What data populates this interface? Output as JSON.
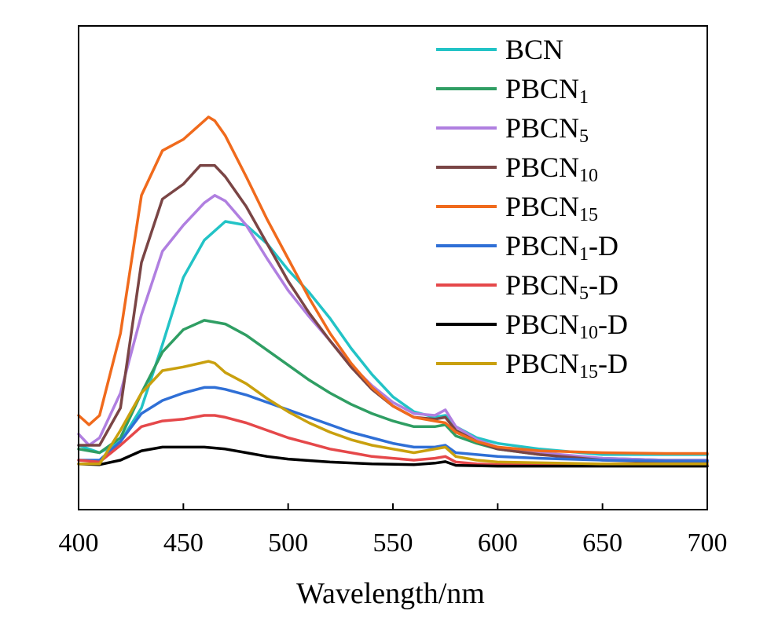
{
  "chart_data": {
    "type": "line",
    "title": "",
    "xlabel": "Wavelength/nm",
    "ylabel": "",
    "xlim": [
      400,
      700
    ],
    "ylim": [
      0,
      1
    ],
    "xticks": [
      "400",
      "450",
      "500",
      "550",
      "600",
      "650",
      "700"
    ],
    "legend_position": "top-right",
    "series": [
      {
        "name": "BCN",
        "label_main": "BCN",
        "label_sub": "",
        "label_suffix": "",
        "color": "#22c3c6",
        "points": [
          [
            400,
            0.08
          ],
          [
            410,
            0.06
          ],
          [
            420,
            0.09
          ],
          [
            430,
            0.18
          ],
          [
            440,
            0.35
          ],
          [
            450,
            0.53
          ],
          [
            460,
            0.63
          ],
          [
            470,
            0.68
          ],
          [
            480,
            0.67
          ],
          [
            490,
            0.62
          ],
          [
            500,
            0.55
          ],
          [
            510,
            0.49
          ],
          [
            520,
            0.42
          ],
          [
            530,
            0.34
          ],
          [
            540,
            0.27
          ],
          [
            550,
            0.21
          ],
          [
            560,
            0.17
          ],
          [
            570,
            0.155
          ],
          [
            575,
            0.16
          ],
          [
            580,
            0.13
          ],
          [
            590,
            0.1
          ],
          [
            600,
            0.085
          ],
          [
            620,
            0.07
          ],
          [
            650,
            0.055
          ],
          [
            680,
            0.055
          ],
          [
            700,
            0.055
          ]
        ]
      },
      {
        "name": "PBCN1",
        "label_main": "PBCN",
        "label_sub": "1",
        "label_suffix": "",
        "color": "#2f9e63",
        "points": [
          [
            400,
            0.07
          ],
          [
            410,
            0.06
          ],
          [
            420,
            0.1
          ],
          [
            430,
            0.22
          ],
          [
            440,
            0.33
          ],
          [
            450,
            0.39
          ],
          [
            460,
            0.415
          ],
          [
            470,
            0.405
          ],
          [
            480,
            0.375
          ],
          [
            490,
            0.335
          ],
          [
            500,
            0.295
          ],
          [
            510,
            0.255
          ],
          [
            520,
            0.22
          ],
          [
            530,
            0.19
          ],
          [
            540,
            0.165
          ],
          [
            550,
            0.145
          ],
          [
            560,
            0.13
          ],
          [
            570,
            0.13
          ],
          [
            575,
            0.135
          ],
          [
            580,
            0.105
          ],
          [
            590,
            0.085
          ],
          [
            600,
            0.07
          ],
          [
            620,
            0.055
          ],
          [
            650,
            0.045
          ],
          [
            680,
            0.04
          ],
          [
            700,
            0.04
          ]
        ]
      },
      {
        "name": "PBCN5",
        "label_main": "PBCN",
        "label_sub": "5",
        "label_suffix": "",
        "color": "#b07fe0",
        "points": [
          [
            400,
            0.11
          ],
          [
            405,
            0.08
          ],
          [
            410,
            0.1
          ],
          [
            420,
            0.22
          ],
          [
            430,
            0.43
          ],
          [
            440,
            0.6
          ],
          [
            450,
            0.67
          ],
          [
            460,
            0.73
          ],
          [
            465,
            0.75
          ],
          [
            470,
            0.735
          ],
          [
            480,
            0.67
          ],
          [
            490,
            0.58
          ],
          [
            500,
            0.495
          ],
          [
            510,
            0.425
          ],
          [
            520,
            0.36
          ],
          [
            530,
            0.295
          ],
          [
            540,
            0.24
          ],
          [
            550,
            0.195
          ],
          [
            560,
            0.165
          ],
          [
            570,
            0.16
          ],
          [
            575,
            0.175
          ],
          [
            580,
            0.13
          ],
          [
            590,
            0.095
          ],
          [
            600,
            0.075
          ],
          [
            620,
            0.06
          ],
          [
            650,
            0.045
          ],
          [
            680,
            0.04
          ],
          [
            700,
            0.04
          ]
        ]
      },
      {
        "name": "PBCN10",
        "label_main": "PBCN",
        "label_sub": "10",
        "label_suffix": "",
        "color": "#7a4545",
        "points": [
          [
            400,
            0.08
          ],
          [
            410,
            0.08
          ],
          [
            420,
            0.18
          ],
          [
            430,
            0.57
          ],
          [
            440,
            0.74
          ],
          [
            450,
            0.78
          ],
          [
            458,
            0.83
          ],
          [
            465,
            0.83
          ],
          [
            470,
            0.8
          ],
          [
            480,
            0.72
          ],
          [
            490,
            0.62
          ],
          [
            500,
            0.52
          ],
          [
            510,
            0.435
          ],
          [
            520,
            0.36
          ],
          [
            530,
            0.29
          ],
          [
            540,
            0.23
          ],
          [
            550,
            0.185
          ],
          [
            560,
            0.155
          ],
          [
            570,
            0.15
          ],
          [
            575,
            0.155
          ],
          [
            580,
            0.12
          ],
          [
            590,
            0.09
          ],
          [
            600,
            0.07
          ],
          [
            620,
            0.055
          ],
          [
            650,
            0.04
          ],
          [
            680,
            0.035
          ],
          [
            700,
            0.035
          ]
        ]
      },
      {
        "name": "PBCN15",
        "label_main": "PBCN",
        "label_sub": "15",
        "label_suffix": "",
        "color": "#f06a1c",
        "points": [
          [
            400,
            0.16
          ],
          [
            405,
            0.135
          ],
          [
            410,
            0.16
          ],
          [
            420,
            0.38
          ],
          [
            430,
            0.75
          ],
          [
            440,
            0.87
          ],
          [
            450,
            0.9
          ],
          [
            455,
            0.925
          ],
          [
            462,
            0.96
          ],
          [
            465,
            0.95
          ],
          [
            470,
            0.91
          ],
          [
            480,
            0.8
          ],
          [
            490,
            0.685
          ],
          [
            500,
            0.58
          ],
          [
            510,
            0.475
          ],
          [
            520,
            0.38
          ],
          [
            530,
            0.3
          ],
          [
            540,
            0.235
          ],
          [
            550,
            0.185
          ],
          [
            560,
            0.155
          ],
          [
            570,
            0.145
          ],
          [
            575,
            0.14
          ],
          [
            580,
            0.115
          ],
          [
            590,
            0.09
          ],
          [
            600,
            0.075
          ],
          [
            620,
            0.065
          ],
          [
            650,
            0.06
          ],
          [
            680,
            0.058
          ],
          [
            700,
            0.058
          ]
        ]
      },
      {
        "name": "PBCN1-D",
        "label_main": "PBCN",
        "label_sub": "1",
        "label_suffix": "-D",
        "color": "#2f6fd6",
        "points": [
          [
            400,
            0.04
          ],
          [
            410,
            0.04
          ],
          [
            420,
            0.09
          ],
          [
            430,
            0.165
          ],
          [
            440,
            0.2
          ],
          [
            450,
            0.22
          ],
          [
            460,
            0.235
          ],
          [
            465,
            0.235
          ],
          [
            470,
            0.23
          ],
          [
            480,
            0.215
          ],
          [
            490,
            0.195
          ],
          [
            500,
            0.175
          ],
          [
            510,
            0.155
          ],
          [
            520,
            0.135
          ],
          [
            530,
            0.115
          ],
          [
            540,
            0.1
          ],
          [
            550,
            0.085
          ],
          [
            560,
            0.075
          ],
          [
            570,
            0.075
          ],
          [
            575,
            0.08
          ],
          [
            580,
            0.06
          ],
          [
            590,
            0.055
          ],
          [
            600,
            0.05
          ],
          [
            620,
            0.045
          ],
          [
            650,
            0.04
          ],
          [
            680,
            0.038
          ],
          [
            700,
            0.038
          ]
        ]
      },
      {
        "name": "PBCN5-D",
        "label_main": "PBCN",
        "label_sub": "5",
        "label_suffix": "-D",
        "color": "#e5484a",
        "points": [
          [
            400,
            0.04
          ],
          [
            410,
            0.035
          ],
          [
            420,
            0.08
          ],
          [
            430,
            0.13
          ],
          [
            440,
            0.145
          ],
          [
            450,
            0.15
          ],
          [
            460,
            0.16
          ],
          [
            465,
            0.16
          ],
          [
            470,
            0.155
          ],
          [
            480,
            0.14
          ],
          [
            490,
            0.12
          ],
          [
            500,
            0.1
          ],
          [
            510,
            0.085
          ],
          [
            520,
            0.07
          ],
          [
            530,
            0.06
          ],
          [
            540,
            0.05
          ],
          [
            550,
            0.045
          ],
          [
            560,
            0.04
          ],
          [
            570,
            0.045
          ],
          [
            575,
            0.05
          ],
          [
            580,
            0.035
          ],
          [
            590,
            0.03
          ],
          [
            600,
            0.028
          ],
          [
            650,
            0.028
          ],
          [
            700,
            0.028
          ]
        ]
      },
      {
        "name": "PBCN10-D",
        "label_main": "PBCN",
        "label_sub": "10",
        "label_suffix": "-D",
        "color": "#000000",
        "points": [
          [
            400,
            0.03
          ],
          [
            410,
            0.028
          ],
          [
            420,
            0.04
          ],
          [
            430,
            0.065
          ],
          [
            440,
            0.075
          ],
          [
            450,
            0.075
          ],
          [
            460,
            0.075
          ],
          [
            470,
            0.07
          ],
          [
            480,
            0.06
          ],
          [
            490,
            0.05
          ],
          [
            500,
            0.043
          ],
          [
            520,
            0.035
          ],
          [
            540,
            0.03
          ],
          [
            560,
            0.028
          ],
          [
            570,
            0.032
          ],
          [
            575,
            0.036
          ],
          [
            580,
            0.026
          ],
          [
            600,
            0.024
          ],
          [
            650,
            0.024
          ],
          [
            700,
            0.024
          ]
        ]
      },
      {
        "name": "PBCN15-D",
        "label_main": "PBCN",
        "label_sub": "15",
        "label_suffix": "-D",
        "color": "#c9a00e",
        "points": [
          [
            400,
            0.03
          ],
          [
            410,
            0.03
          ],
          [
            420,
            0.12
          ],
          [
            430,
            0.22
          ],
          [
            440,
            0.28
          ],
          [
            450,
            0.29
          ],
          [
            458,
            0.3
          ],
          [
            462,
            0.305
          ],
          [
            465,
            0.3
          ],
          [
            470,
            0.275
          ],
          [
            480,
            0.245
          ],
          [
            490,
            0.205
          ],
          [
            500,
            0.17
          ],
          [
            510,
            0.14
          ],
          [
            520,
            0.115
          ],
          [
            530,
            0.095
          ],
          [
            540,
            0.08
          ],
          [
            550,
            0.07
          ],
          [
            560,
            0.06
          ],
          [
            570,
            0.07
          ],
          [
            575,
            0.075
          ],
          [
            580,
            0.05
          ],
          [
            590,
            0.04
          ],
          [
            600,
            0.035
          ],
          [
            650,
            0.03
          ],
          [
            700,
            0.03
          ]
        ]
      }
    ]
  }
}
